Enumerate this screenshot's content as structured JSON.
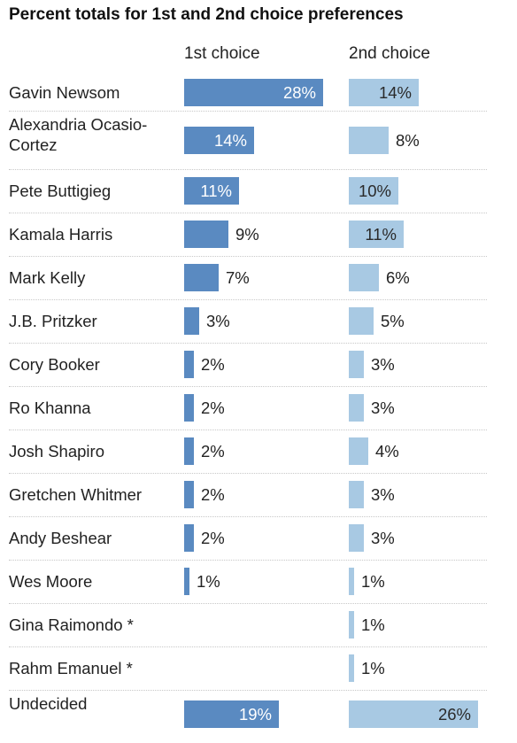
{
  "chart_data": {
    "type": "bar",
    "title": "Percent totals for 1st and 2nd choice preferences",
    "series": [
      {
        "name": "1st choice",
        "values": [
          28,
          14,
          11,
          9,
          7,
          3,
          2,
          2,
          2,
          2,
          2,
          1,
          null,
          null,
          19
        ]
      },
      {
        "name": "2nd choice",
        "values": [
          14,
          8,
          10,
          11,
          6,
          5,
          3,
          3,
          4,
          3,
          3,
          1,
          1,
          1,
          26
        ]
      }
    ],
    "categories": [
      "Gavin Newsom",
      "Alexandria Ocasio-Cortez",
      "Pete Buttigieg",
      "Kamala Harris",
      "Mark Kelly",
      "J.B. Pritzker",
      "Cory Booker",
      "Ro Khanna",
      "Josh Shapiro",
      "Gretchen Whitmer",
      "Andy Beshear",
      "Wes Moore",
      "Gina Raimondo *",
      "Rahm Emanuel *",
      "Undecided"
    ],
    "value_suffix": "%",
    "colors": {
      "first": "#5a8ac1",
      "second": "#a8c9e3"
    }
  }
}
